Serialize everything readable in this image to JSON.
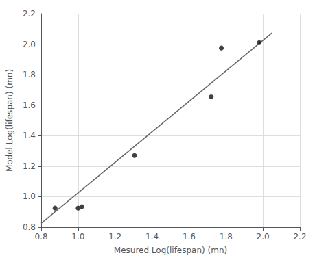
{
  "chart_data": {
    "type": "scatter",
    "xlabel": "Mesured Log(lifespan) (mn)",
    "ylabel": "Model Log(lifespan) (mn)",
    "xlim": [
      0.8,
      2.2
    ],
    "ylim": [
      0.8,
      2.2
    ],
    "xticks": [
      0.8,
      {
        "value": 1,
        "label": "1.0"
      },
      1.2,
      1.4,
      1.6,
      1.8,
      {
        "value": 2,
        "label": "2.0"
      },
      2.2
    ],
    "yticks": [
      0.8,
      {
        "value": 1,
        "label": "1.0"
      },
      1.2,
      1.4,
      1.6,
      1.8,
      {
        "value": 2,
        "label": "2.0"
      },
      2.2
    ],
    "grid": true,
    "series": [
      {
        "type": "line",
        "color": "#666666",
        "x": [
          0.8,
          2.05
        ],
        "values": [
          0.825,
          2.075
        ]
      },
      {
        "type": "scatter",
        "color": "#111111",
        "x": [
          0.875,
          1.0,
          1.02,
          1.305,
          1.72,
          1.775,
          1.98
        ],
        "values": [
          0.925,
          0.925,
          0.935,
          1.27,
          1.655,
          1.975,
          2.01
        ]
      }
    ]
  }
}
